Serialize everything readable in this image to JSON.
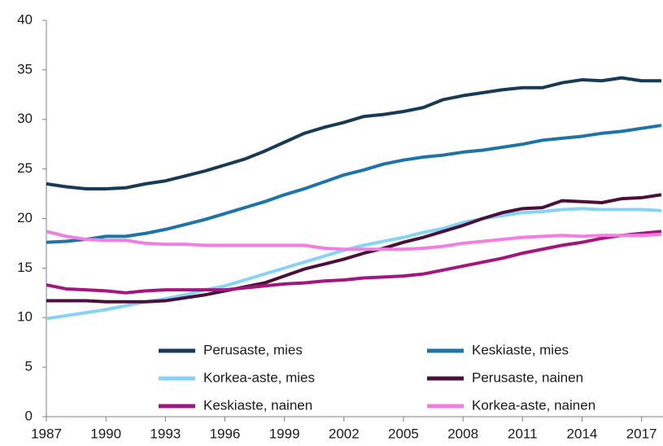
{
  "chart_data": {
    "type": "line",
    "x": [
      1987,
      1988,
      1989,
      1990,
      1991,
      1992,
      1993,
      1994,
      1995,
      1996,
      1997,
      1998,
      1999,
      2000,
      2001,
      2002,
      2003,
      2004,
      2005,
      2006,
      2007,
      2008,
      2009,
      2010,
      2011,
      2012,
      2013,
      2014,
      2015,
      2016,
      2017,
      2018
    ],
    "xlim": [
      1987,
      2018
    ],
    "xticks": [
      1987,
      1990,
      1993,
      1996,
      1999,
      2002,
      2005,
      2008,
      2011,
      2014,
      2017
    ],
    "ylim": [
      0,
      40
    ],
    "yticks": [
      0,
      5,
      10,
      15,
      20,
      25,
      30,
      35,
      40
    ],
    "grid": false,
    "legend": "bottom",
    "series": [
      {
        "name": "Perusaste, mies",
        "color": "#173a55",
        "values": [
          23.5,
          23.2,
          23.0,
          23.0,
          23.1,
          23.5,
          23.8,
          24.3,
          24.8,
          25.4,
          26.0,
          26.8,
          27.7,
          28.6,
          29.2,
          29.7,
          30.3,
          30.5,
          30.8,
          31.2,
          32.0,
          32.4,
          32.7,
          33.0,
          33.2,
          33.2,
          33.7,
          34.0,
          33.9,
          34.2,
          33.9,
          33.9
        ]
      },
      {
        "name": "Keskiaste, mies",
        "color": "#1d74a8",
        "values": [
          17.6,
          17.7,
          17.9,
          18.2,
          18.2,
          18.5,
          18.9,
          19.4,
          19.9,
          20.5,
          21.1,
          21.7,
          22.4,
          23.0,
          23.7,
          24.4,
          24.9,
          25.5,
          25.9,
          26.2,
          26.4,
          26.7,
          26.9,
          27.2,
          27.5,
          27.9,
          28.1,
          28.3,
          28.6,
          28.8,
          29.1,
          29.4
        ]
      },
      {
        "name": "Korkea-aste, mies",
        "color": "#86d3f5",
        "values": [
          9.9,
          10.2,
          10.5,
          10.8,
          11.2,
          11.6,
          11.9,
          12.3,
          12.8,
          13.2,
          13.8,
          14.4,
          15.0,
          15.6,
          16.2,
          16.8,
          17.3,
          17.7,
          18.1,
          18.6,
          19.0,
          19.6,
          20.0,
          20.3,
          20.6,
          20.7,
          20.9,
          21.0,
          20.9,
          20.9,
          20.9,
          20.8
        ]
      },
      {
        "name": "Perusaste, nainen",
        "color": "#4a1039",
        "values": [
          11.7,
          11.7,
          11.7,
          11.6,
          11.6,
          11.6,
          11.7,
          12.0,
          12.3,
          12.7,
          13.1,
          13.5,
          14.2,
          14.9,
          15.4,
          15.9,
          16.5,
          17.0,
          17.6,
          18.1,
          18.7,
          19.3,
          20.0,
          20.6,
          21.0,
          21.1,
          21.8,
          21.7,
          21.6,
          22.0,
          22.1,
          22.4
        ]
      },
      {
        "name": "Keskiaste, nainen",
        "color": "#a3157f",
        "values": [
          13.3,
          12.9,
          12.8,
          12.7,
          12.5,
          12.7,
          12.8,
          12.8,
          12.8,
          12.8,
          13.0,
          13.2,
          13.4,
          13.5,
          13.7,
          13.8,
          14.0,
          14.1,
          14.2,
          14.4,
          14.8,
          15.2,
          15.6,
          16.0,
          16.5,
          16.9,
          17.3,
          17.6,
          18.0,
          18.3,
          18.5,
          18.7
        ]
      },
      {
        "name": "Korkea-aste, nainen",
        "color": "#f27ee2",
        "values": [
          18.7,
          18.2,
          17.9,
          17.8,
          17.8,
          17.5,
          17.4,
          17.4,
          17.3,
          17.3,
          17.3,
          17.3,
          17.3,
          17.3,
          17.0,
          16.9,
          16.9,
          16.9,
          16.9,
          17.0,
          17.2,
          17.5,
          17.7,
          17.9,
          18.1,
          18.2,
          18.3,
          18.2,
          18.3,
          18.3,
          18.3,
          18.4
        ]
      }
    ]
  }
}
